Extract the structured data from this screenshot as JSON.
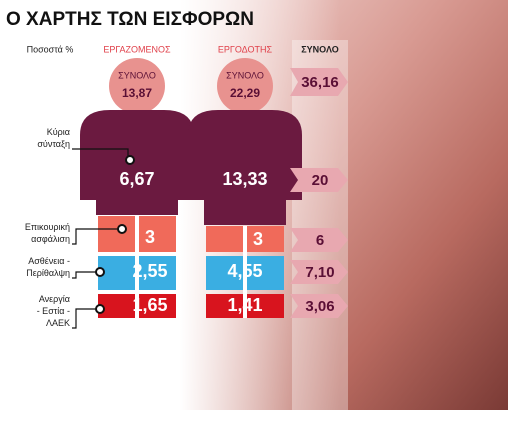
{
  "title": "Ο ΧΑΡΤΗΣ ΤΩΝ ΕΙΣΦΟΡΩΝ",
  "headers": {
    "percent": "Ποσοστά %",
    "employee": "ΕΡΓΑΖΟΜΕΝΟΣ",
    "employer": "ΕΡΓΟΔΟΤΗΣ",
    "total": "ΣΥΝΟΛΟ"
  },
  "totals": {
    "employee_label": "ΣΥΝΟΛΟ",
    "employee": "13,87",
    "employer_label": "ΣΥΝΟΛΟ",
    "employer": "22,29",
    "total": "36,16"
  },
  "rows": [
    {
      "label": "Κύρια σύνταξη",
      "employee": "6,67",
      "employer": "13,33",
      "total": "20"
    },
    {
      "label": "Επικουρική ασφάλιση",
      "employee": "3",
      "employer": "3",
      "total": "6"
    },
    {
      "label": "Ασθένεια - Περίθαλψη",
      "employee": "2,55",
      "employer": "4,55",
      "total": "7,10"
    },
    {
      "label": "Ανεργία - Εστία - ΛΑΕΚ",
      "employee": "1,65",
      "employer": "1,41",
      "total": "3,06"
    }
  ]
}
